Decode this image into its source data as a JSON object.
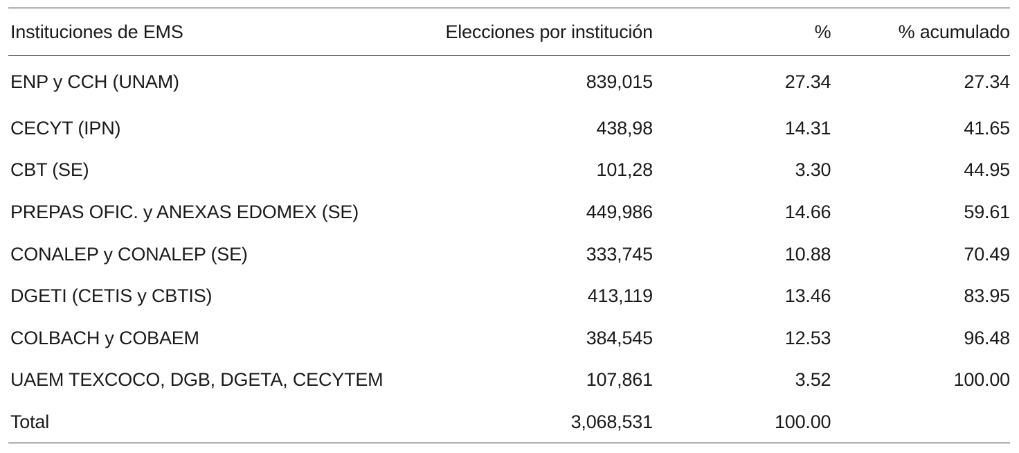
{
  "table": {
    "headers": [
      "Instituciones de EMS",
      "Elecciones por institución",
      "%",
      "% acumulado"
    ],
    "rows": [
      [
        "ENP y CCH (UNAM)",
        "839,015",
        "27.34",
        "27.34"
      ],
      [
        "CECYT (IPN)",
        "438,98",
        "14.31",
        "41.65"
      ],
      [
        "CBT (SE)",
        "101,28",
        "3.30",
        "44.95"
      ],
      [
        "PREPAS OFIC. y ANEXAS EDOMEX (SE)",
        "449,986",
        "14.66",
        "59.61"
      ],
      [
        "CONALEP y CONALEP (SE)",
        "333,745",
        "10.88",
        "70.49"
      ],
      [
        "DGETI (CETIS y CBTIS)",
        "413,119",
        "13.46",
        "83.95"
      ],
      [
        "COLBACH y COBAEM",
        "384,545",
        "12.53",
        "96.48"
      ],
      [
        "UAEM TEXCOCO, DGB, DGETA, CECYTEM",
        "107,861",
        "3.52",
        "100.00"
      ],
      [
        "Total",
        "3,068,531",
        "100.00",
        ""
      ]
    ]
  }
}
